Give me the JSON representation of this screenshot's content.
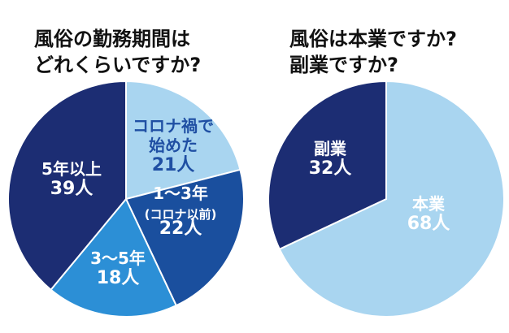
{
  "chart_data": [
    {
      "type": "pie",
      "title_lines": [
        "風俗の勤務期間は",
        "どれくらいですか?"
      ],
      "slices": [
        {
          "lines": [
            "コロナ禍で",
            "始めた"
          ],
          "value_label": "21人",
          "value": 21,
          "color": "#a9d5f0",
          "text_color": "#1f4fa3"
        },
        {
          "lines": [
            "1～3年",
            "(コロナ以前)"
          ],
          "value_label": "22人",
          "value": 22,
          "color": "#1a4f9e",
          "text_color": "#ffffff"
        },
        {
          "lines": [
            "3～5年"
          ],
          "value_label": "18人",
          "value": 18,
          "color": "#2c8fd6",
          "text_color": "#ffffff"
        },
        {
          "lines": [
            "5年以上"
          ],
          "value_label": "39人",
          "value": 39,
          "color": "#1c2d73",
          "text_color": "#ffffff"
        }
      ]
    },
    {
      "type": "pie",
      "title_lines": [
        "風俗は本業ですか?",
        "副業ですか?"
      ],
      "slices": [
        {
          "lines": [
            "本業"
          ],
          "value_label": "68人",
          "value": 68,
          "color": "#a9d5f0",
          "text_color": "#ffffff"
        },
        {
          "lines": [
            "副業"
          ],
          "value_label": "32人",
          "value": 32,
          "color": "#1c2d73",
          "text_color": "#ffffff"
        }
      ]
    }
  ]
}
